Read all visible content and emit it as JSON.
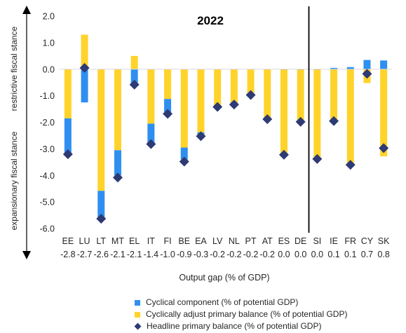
{
  "chart_data": {
    "type": "bar",
    "title": "2022",
    "xlabel": "Output gap (% of GDP)",
    "ylabel_top": "restrictive fiscal stance",
    "ylabel_bottom": "expansionary fiscal stance",
    "ylim": [
      -6.0,
      2.0
    ],
    "yticks": [
      "2.0",
      "1.0",
      "0.0",
      "-1.0",
      "-2.0",
      "-3.0",
      "-4.0",
      "-5.0",
      "-6.0"
    ],
    "ytick_values": [
      2,
      1,
      0,
      -1,
      -2,
      -3,
      -4,
      -5,
      -6
    ],
    "categories": [
      "EE",
      "LU",
      "LT",
      "MT",
      "EL",
      "IT",
      "FI",
      "BE",
      "EA",
      "LV",
      "NL",
      "PT",
      "AT",
      "ES",
      "DE",
      "SI",
      "IE",
      "FR",
      "CY",
      "SK"
    ],
    "output_gap": [
      "-2.8",
      "-2.7",
      "-2.6",
      "-2.1",
      "-2.1",
      "-1.4",
      "-1.0",
      "-0.9",
      "-0.3",
      "-0.2",
      "-0.2",
      "-0.2",
      "-0.2",
      "0.0",
      "0.0",
      "0.0",
      "0.1",
      "0.1",
      "0.7",
      "0.8"
    ],
    "divider_after": "DE",
    "series": [
      {
        "name": "Cyclical component (% of potential GDP)",
        "color": "#2f8ff0",
        "values": [
          -1.35,
          -1.25,
          -1.05,
          -0.95,
          -0.6,
          -0.75,
          -0.5,
          -0.45,
          -0.1,
          -0.05,
          -0.05,
          -0.05,
          -0.05,
          0.0,
          0.0,
          0.0,
          0.05,
          0.08,
          0.35,
          0.33
        ]
      },
      {
        "name": "Cyclically adjust primary balance (% of potential GDP)",
        "color": "#ffd32a",
        "values": [
          -1.85,
          1.3,
          -4.58,
          -3.05,
          0.5,
          -2.05,
          -1.12,
          -2.95,
          -2.38,
          -1.38,
          -1.25,
          -0.95,
          -1.85,
          -3.2,
          -1.95,
          -3.38,
          -1.9,
          -3.6,
          -0.52,
          -3.28
        ]
      },
      {
        "name": "Headline primary balance (% of potential GDP)",
        "color": "#2e3a73",
        "values": [
          -3.2,
          0.05,
          -5.63,
          -4.08,
          -0.58,
          -2.82,
          -1.68,
          -3.48,
          -2.52,
          -1.42,
          -1.33,
          -0.97,
          -1.88,
          -3.22,
          -1.98,
          -3.38,
          -1.95,
          -3.6,
          -0.17,
          -2.97
        ]
      }
    ],
    "legend_position": "bottom",
    "grid": false
  }
}
